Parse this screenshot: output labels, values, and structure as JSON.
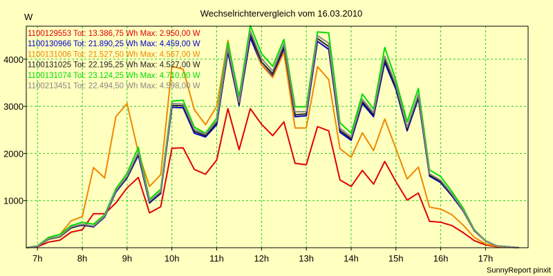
{
  "chart_data": {
    "type": "line",
    "title": "Wechselrichtervergleich vom 16.03.2010",
    "ylabel": "W",
    "footer": "SunnyReport pinxit",
    "xlim": [
      6.75,
      17.95
    ],
    "ylim": [
      0,
      4700
    ],
    "x_ticks": [
      {
        "value": 7,
        "label": "7h"
      },
      {
        "value": 8,
        "label": "8h"
      },
      {
        "value": 9,
        "label": "9h"
      },
      {
        "value": 10,
        "label": "10h"
      },
      {
        "value": 11,
        "label": "11h"
      },
      {
        "value": 12,
        "label": "12h"
      },
      {
        "value": 13,
        "label": "13h"
      },
      {
        "value": 14,
        "label": "14h"
      },
      {
        "value": 15,
        "label": "15h"
      },
      {
        "value": 16,
        "label": "16h"
      },
      {
        "value": 17,
        "label": "17h"
      }
    ],
    "y_ticks": [
      {
        "value": 1000,
        "label": "1000"
      },
      {
        "value": 2000,
        "label": "2000"
      },
      {
        "value": 3000,
        "label": "3000"
      },
      {
        "value": 4000,
        "label": "4000"
      }
    ],
    "x": [
      6.75,
      7.0,
      7.25,
      7.5,
      7.75,
      8.0,
      8.25,
      8.5,
      8.75,
      9.0,
      9.25,
      9.5,
      9.75,
      10.0,
      10.25,
      10.5,
      10.75,
      11.0,
      11.25,
      11.5,
      11.75,
      12.0,
      12.25,
      12.5,
      12.75,
      13.0,
      13.25,
      13.5,
      13.75,
      14.0,
      14.25,
      14.5,
      14.75,
      15.0,
      15.25,
      15.5,
      15.75,
      16.0,
      16.25,
      16.5,
      16.75,
      17.0,
      17.25,
      17.5,
      17.75
    ],
    "grid": true,
    "legend_position": "top-left",
    "series": [
      {
        "name": "1100129553",
        "legend": "1100129553 Tot: 13.386,75 Wh Max: 2.950,00 W",
        "color": "#e00000",
        "values": [
          0,
          20,
          120,
          160,
          330,
          380,
          720,
          720,
          950,
          1270,
          1490,
          740,
          870,
          2110,
          2120,
          1660,
          1560,
          1860,
          2950,
          2080,
          2950,
          2620,
          2380,
          2670,
          1790,
          1760,
          2570,
          2480,
          1440,
          1300,
          1640,
          1350,
          1830,
          1400,
          1010,
          1160,
          560,
          540,
          470,
          320,
          150,
          60,
          20,
          10,
          0
        ]
      },
      {
        "name": "1100130966",
        "legend": "1100130966 Tot: 21.890,25 Wh Max: 4.459,00 W",
        "color": "#0000cc",
        "values": [
          0,
          30,
          180,
          230,
          420,
          480,
          440,
          650,
          1180,
          1480,
          1960,
          950,
          1150,
          2980,
          2970,
          2430,
          2350,
          2610,
          4150,
          3020,
          4459,
          3880,
          3640,
          4210,
          2780,
          2800,
          4380,
          4210,
          2450,
          2280,
          3060,
          2780,
          3930,
          3360,
          2480,
          3170,
          1520,
          1380,
          1100,
          780,
          360,
          140,
          40,
          20,
          0
        ]
      },
      {
        "name": "1100131006",
        "legend": "1100131006 Tot: 21.527,50 Wh Max: 4.567,00 W",
        "color": "#ee8800",
        "values": [
          0,
          40,
          220,
          280,
          570,
          660,
          1700,
          1480,
          2780,
          3060,
          2020,
          1300,
          1550,
          3850,
          3790,
          2930,
          2610,
          3000,
          4400,
          3120,
          4567,
          3880,
          3610,
          4150,
          2540,
          2540,
          3840,
          3570,
          2100,
          1920,
          2440,
          2060,
          2730,
          2100,
          1460,
          1710,
          860,
          820,
          700,
          480,
          220,
          80,
          30,
          10,
          0
        ]
      },
      {
        "name": "1100131025",
        "legend": "1100131025 Tot: 22.195,25 Wh Max: 4.527,00 W",
        "color": "#222222",
        "values": [
          0,
          30,
          180,
          230,
          420,
          490,
          450,
          660,
          1200,
          1500,
          2000,
          970,
          1170,
          3020,
          3010,
          2470,
          2380,
          2650,
          4200,
          3050,
          4527,
          3940,
          3690,
          4270,
          2820,
          2840,
          4440,
          4270,
          2490,
          2310,
          3100,
          2820,
          3990,
          3400,
          2510,
          3210,
          1540,
          1400,
          1120,
          790,
          360,
          140,
          40,
          20,
          0
        ]
      },
      {
        "name": "1100131074",
        "legend": "1100131074 Tot: 23.124,25 Wh Max: 4.710,00 W",
        "color": "#00dd00",
        "values": [
          0,
          40,
          220,
          280,
          470,
          540,
          500,
          700,
          1250,
          1580,
          2130,
          1030,
          1240,
          3110,
          3130,
          2560,
          2430,
          2750,
          4360,
          3200,
          4710,
          4120,
          3850,
          4420,
          2990,
          2990,
          4580,
          4560,
          2650,
          2430,
          3260,
          2940,
          4250,
          3550,
          2670,
          3380,
          1650,
          1510,
          1190,
          840,
          380,
          150,
          40,
          20,
          0
        ]
      },
      {
        "name": "1100213451",
        "legend": "1100213451 Tot: 22.494,50 Wh Max: 4.598,00 W",
        "color": "#888888",
        "values": [
          0,
          30,
          190,
          240,
          440,
          500,
          460,
          670,
          1210,
          1520,
          2030,
          990,
          1190,
          3060,
          3050,
          2510,
          2410,
          2690,
          4250,
          3090,
          4598,
          4010,
          3750,
          4330,
          2880,
          2890,
          4500,
          4340,
          2540,
          2350,
          3150,
          2870,
          4060,
          3460,
          2560,
          3260,
          1570,
          1430,
          1140,
          800,
          370,
          140,
          40,
          20,
          0
        ]
      }
    ]
  }
}
